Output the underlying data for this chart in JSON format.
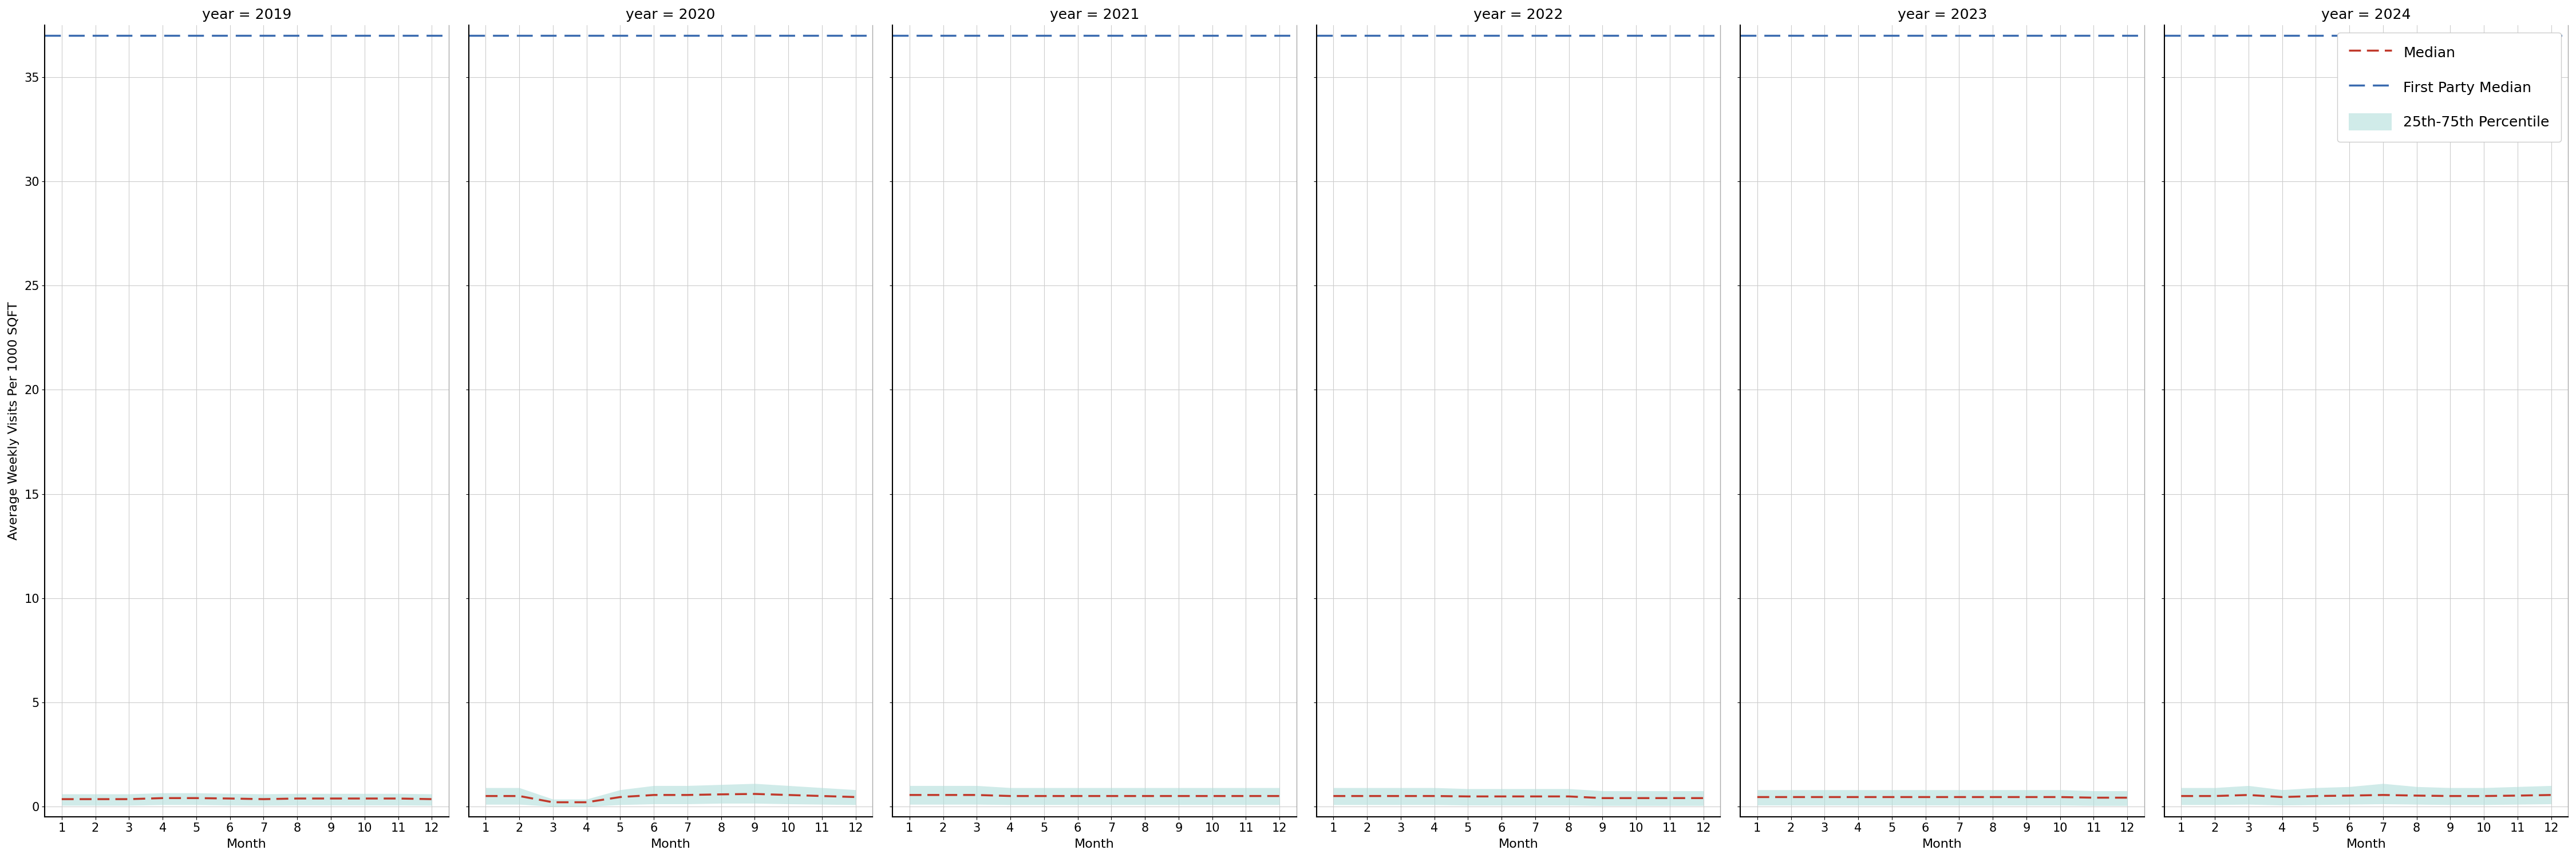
{
  "years": [
    2019,
    2020,
    2021,
    2022,
    2023,
    2024
  ],
  "months": [
    1,
    2,
    3,
    4,
    5,
    6,
    7,
    8,
    9,
    10,
    11,
    12
  ],
  "ylabel": "Average Weekly Visits Per 1000 SQFT",
  "xlabel": "Month",
  "ylim": [
    -0.5,
    37.5
  ],
  "yticks": [
    0,
    5,
    10,
    15,
    20,
    25,
    30,
    35
  ],
  "first_party_median": 37.0,
  "medians": {
    "2019": [
      0.35,
      0.35,
      0.35,
      0.4,
      0.4,
      0.38,
      0.35,
      0.38,
      0.38,
      0.38,
      0.38,
      0.35
    ],
    "2020": [
      0.5,
      0.5,
      0.2,
      0.2,
      0.45,
      0.55,
      0.55,
      0.58,
      0.6,
      0.55,
      0.5,
      0.45
    ],
    "2021": [
      0.55,
      0.55,
      0.55,
      0.5,
      0.5,
      0.5,
      0.5,
      0.5,
      0.5,
      0.5,
      0.5,
      0.5
    ],
    "2022": [
      0.5,
      0.5,
      0.5,
      0.5,
      0.48,
      0.48,
      0.48,
      0.48,
      0.4,
      0.4,
      0.4,
      0.4
    ],
    "2023": [
      0.45,
      0.45,
      0.45,
      0.45,
      0.45,
      0.45,
      0.45,
      0.45,
      0.45,
      0.45,
      0.42,
      0.42
    ],
    "2024": [
      0.5,
      0.5,
      0.55,
      0.45,
      0.5,
      0.52,
      0.55,
      0.52,
      0.5,
      0.5,
      0.52,
      0.55
    ]
  },
  "q25": {
    "2019": [
      0.05,
      0.05,
      0.05,
      0.08,
      0.08,
      0.06,
      0.05,
      0.06,
      0.06,
      0.06,
      0.06,
      0.05
    ],
    "2020": [
      0.1,
      0.1,
      0.0,
      0.0,
      0.08,
      0.12,
      0.12,
      0.15,
      0.15,
      0.12,
      0.1,
      0.08
    ],
    "2021": [
      0.1,
      0.1,
      0.1,
      0.08,
      0.08,
      0.08,
      0.08,
      0.08,
      0.08,
      0.08,
      0.08,
      0.08
    ],
    "2022": [
      0.08,
      0.08,
      0.08,
      0.08,
      0.06,
      0.06,
      0.06,
      0.06,
      0.04,
      0.04,
      0.04,
      0.04
    ],
    "2023": [
      0.06,
      0.06,
      0.06,
      0.06,
      0.06,
      0.06,
      0.06,
      0.06,
      0.06,
      0.06,
      0.04,
      0.04
    ],
    "2024": [
      0.08,
      0.08,
      0.1,
      0.06,
      0.08,
      0.1,
      0.12,
      0.1,
      0.08,
      0.08,
      0.1,
      0.12
    ]
  },
  "q75": {
    "2019": [
      0.6,
      0.6,
      0.6,
      0.65,
      0.65,
      0.62,
      0.6,
      0.62,
      0.62,
      0.62,
      0.62,
      0.6
    ],
    "2020": [
      0.9,
      0.9,
      0.35,
      0.35,
      0.8,
      1.0,
      1.0,
      1.05,
      1.1,
      1.0,
      0.9,
      0.8
    ],
    "2021": [
      1.0,
      1.0,
      1.0,
      0.9,
      0.9,
      0.9,
      0.9,
      0.9,
      0.9,
      0.9,
      0.9,
      0.9
    ],
    "2022": [
      0.9,
      0.9,
      0.9,
      0.9,
      0.85,
      0.85,
      0.85,
      0.85,
      0.75,
      0.75,
      0.75,
      0.75
    ],
    "2023": [
      0.8,
      0.8,
      0.8,
      0.8,
      0.8,
      0.8,
      0.8,
      0.8,
      0.8,
      0.8,
      0.75,
      0.75
    ],
    "2024": [
      0.9,
      0.9,
      1.0,
      0.8,
      0.9,
      0.95,
      1.1,
      0.95,
      0.9,
      0.9,
      0.95,
      1.0
    ]
  },
  "median_color": "#c0392b",
  "fp_median_color": "#3a6baf",
  "band_color": "#b2dfdb",
  "band_alpha": 0.6,
  "grid_color": "#cccccc",
  "background_color": "#ffffff",
  "title_fontsize": 18,
  "axis_label_fontsize": 16,
  "tick_fontsize": 15,
  "legend_fontsize": 18
}
